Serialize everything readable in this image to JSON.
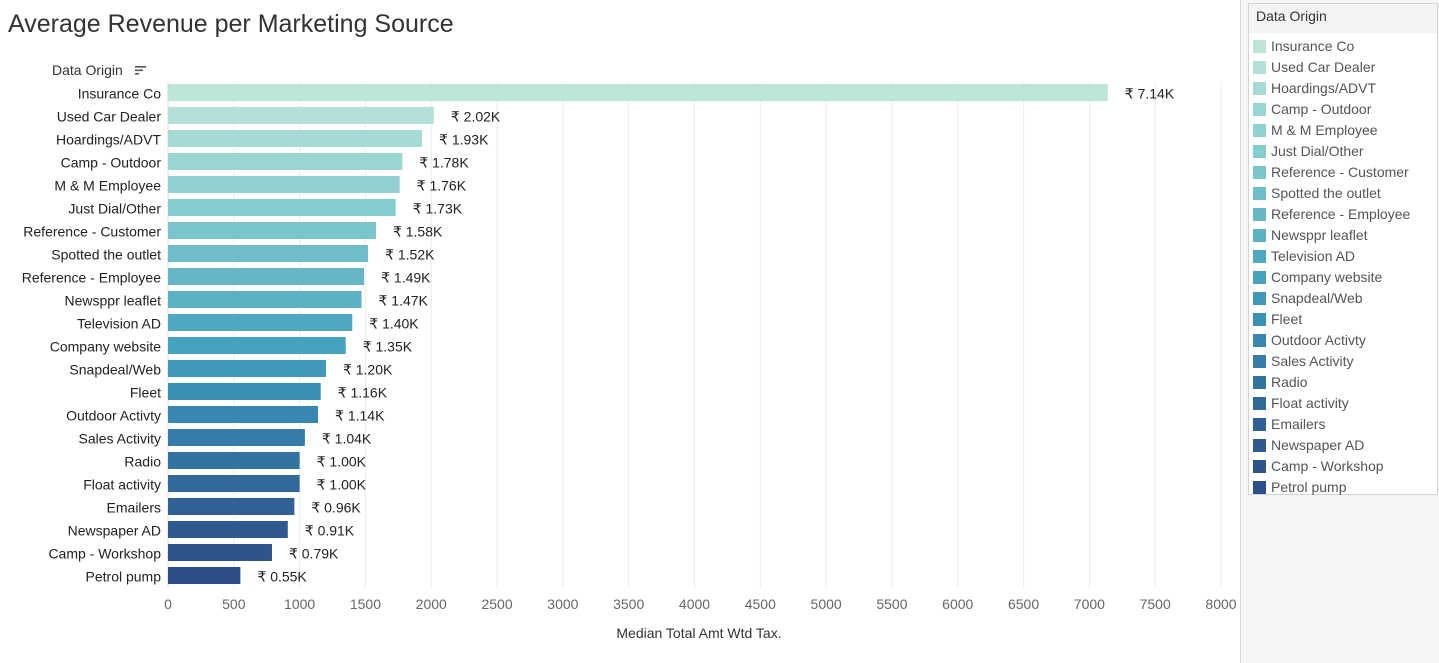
{
  "chart_data": {
    "type": "bar",
    "orientation": "horizontal",
    "title": "Average Revenue per Marketing Source",
    "row_header": "Data Origin",
    "xlabel": "Median Total Amt Wtd Tax.",
    "xlim": [
      0,
      8000
    ],
    "xticks": [
      0,
      500,
      1000,
      1500,
      2000,
      2500,
      3000,
      3500,
      4000,
      4500,
      5000,
      5500,
      6000,
      6500,
      7000,
      7500,
      8000
    ],
    "grid": true,
    "legend_title": "Data Origin",
    "legend_position": "right",
    "categories": [
      "Insurance Co",
      "Used Car Dealer",
      "Hoardings/ADVT",
      "Camp - Outdoor",
      "M & M Employee",
      "Just Dial/Other",
      "Reference - Customer",
      "Spotted the outlet",
      "Reference - Employee",
      "Newsppr leaflet",
      "Television AD",
      "Company website",
      "Snapdeal/Web",
      "Fleet",
      "Outdoor Activty",
      "Sales Activity",
      "Radio",
      "Float activity",
      "Emailers",
      "Newspaper AD",
      "Camp - Workshop",
      "Petrol pump"
    ],
    "values": [
      7140,
      2020,
      1930,
      1780,
      1760,
      1730,
      1580,
      1520,
      1490,
      1470,
      1400,
      1350,
      1200,
      1160,
      1140,
      1040,
      1000,
      1000,
      960,
      910,
      790,
      550
    ],
    "data_labels": [
      "₹ 7.14K",
      "₹ 2.02K",
      "₹ 1.93K",
      "₹ 1.78K",
      "₹ 1.76K",
      "₹ 1.73K",
      "₹ 1.58K",
      "₹ 1.52K",
      "₹ 1.49K",
      "₹ 1.47K",
      "₹ 1.40K",
      "₹ 1.35K",
      "₹ 1.20K",
      "₹ 1.16K",
      "₹ 1.14K",
      "₹ 1.04K",
      "₹ 1.00K",
      "₹ 1.00K",
      "₹ 0.96K",
      "₹ 0.91K",
      "₹ 0.79K",
      "₹ 0.55K"
    ],
    "colors": [
      "#bde4d9",
      "#b3e0d8",
      "#a6dad4",
      "#9ad5d2",
      "#91d1d0",
      "#85ccce",
      "#7ac4cb",
      "#6fbdc8",
      "#66b7c5",
      "#5cb1c2",
      "#50a8c0",
      "#47a2bd",
      "#4099b9",
      "#3b91b4",
      "#3787ae",
      "#357da8",
      "#3373a1",
      "#31699b",
      "#2f6195",
      "#2e5a91",
      "#2d548d",
      "#2c4f89"
    ]
  }
}
